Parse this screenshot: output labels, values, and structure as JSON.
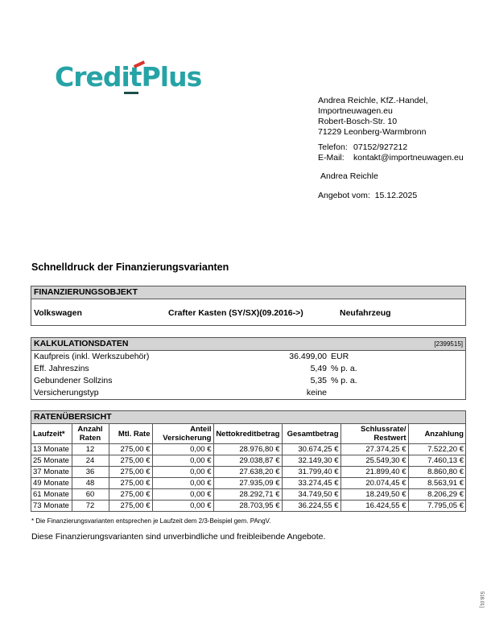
{
  "logo": {
    "text": "CreditPlus"
  },
  "dealer": {
    "lines": [
      "Andrea Reichle, KfZ.-Handel,",
      "Importneuwagen.eu",
      "Robert-Bosch-Str. 10",
      "71229 Leonberg-Warmbronn"
    ],
    "phone_label": "Telefon:",
    "phone": "07152/927212",
    "email_label": "E-Mail:",
    "email": "kontakt@importneuwagen.eu",
    "contact": "Andrea Reichle",
    "offer_label": "Angebot vom:",
    "offer_date": "15.12.2025"
  },
  "title": "Schnelldruck der Finanzierungsvarianten",
  "objekt": {
    "header": "FINANZIERUNGSOBJEKT",
    "brand": "Volkswagen",
    "model": "Crafter Kasten (SY/SX)(09.2016->)",
    "condition": "Neufahrzeug"
  },
  "kalkulation": {
    "header": "KALKULATIONSDATEN",
    "ref": "[2399515]",
    "rows": [
      {
        "label": "Kaufpreis (inkl. Werkszubehör)",
        "value": "36.499,00",
        "unit": "EUR"
      },
      {
        "label": "Eff. Jahreszins",
        "value": "5,49",
        "unit": "% p. a."
      },
      {
        "label": "Gebundener Sollzins",
        "value": "5,35",
        "unit": "% p. a."
      },
      {
        "label": "Versicherungstyp",
        "value": "keine",
        "unit": ""
      }
    ]
  },
  "raten": {
    "header": "RATENÜBERSICHT",
    "columns": [
      "Laufzeit*",
      "Anzahl Raten",
      "Mtl. Rate",
      "Anteil Versicherung",
      "Nettokreditbetrag",
      "Gesamtbetrag",
      "Schlussrate/ Restwert",
      "Anzahlung"
    ],
    "rows": [
      [
        "13 Monate",
        "12",
        "275,00 €",
        "0,00 €",
        "28.976,80 €",
        "30.674,25 €",
        "27.374,25 €",
        "7.522,20 €"
      ],
      [
        "25 Monate",
        "24",
        "275,00 €",
        "0,00 €",
        "29.038,87 €",
        "32.149,30 €",
        "25.549,30 €",
        "7.460,13 €"
      ],
      [
        "37 Monate",
        "36",
        "275,00 €",
        "0,00 €",
        "27.638,20 €",
        "31.799,40 €",
        "21.899,40 €",
        "8.860,80 €"
      ],
      [
        "49 Monate",
        "48",
        "275,00 €",
        "0,00 €",
        "27.935,09 €",
        "33.274,45 €",
        "20.074,45 €",
        "8.563,91 €"
      ],
      [
        "61 Monate",
        "60",
        "275,00 €",
        "0,00 €",
        "28.292,71 €",
        "34.749,50 €",
        "18.249,50 €",
        "8.206,29 €"
      ],
      [
        "73 Monate",
        "72",
        "275,00 €",
        "0,00 €",
        "28.703,95 €",
        "36.224,55 €",
        "16.424,55 €",
        "7.795,05 €"
      ]
    ]
  },
  "footnote": "* Die Finanzierungsvarianten entsprechen je Laufzeit dem 2/3-Beispiel gem. PAngV.",
  "disclaimer": "Diese Finanzierungsvarianten sind unverbindliche und freibleibende Angebote.",
  "form_code": "518.01]"
}
